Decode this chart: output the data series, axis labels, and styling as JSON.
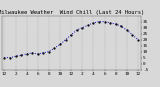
{
  "title": "Milwaukee Weather  Wind Chill (Last 24 Hours)",
  "y_values": [
    5,
    5,
    6,
    7,
    8,
    9,
    8,
    9,
    10,
    13,
    16,
    20,
    24,
    28,
    30,
    32,
    34,
    35,
    35,
    34,
    33,
    31,
    28,
    24,
    20
  ],
  "x_labels": [
    "12",
    "1",
    "2",
    "3",
    "4",
    "5",
    "6",
    "7",
    "8",
    "9",
    "10",
    "11",
    "12",
    "1",
    "2",
    "3",
    "4",
    "5",
    "6",
    "7",
    "8",
    "9",
    "10",
    "11",
    "12"
  ],
  "line_color": "#0000cc",
  "marker_color": "#000000",
  "bg_color": "#d8d8d8",
  "grid_color": "#888888",
  "ylim_min": -5,
  "ylim_max": 40,
  "y_ticks": [
    -5,
    0,
    5,
    10,
    15,
    20,
    25,
    30,
    35
  ],
  "title_fontsize": 4.0,
  "tick_fontsize": 3.2,
  "fig_width": 1.6,
  "fig_height": 0.87,
  "dpi": 100
}
